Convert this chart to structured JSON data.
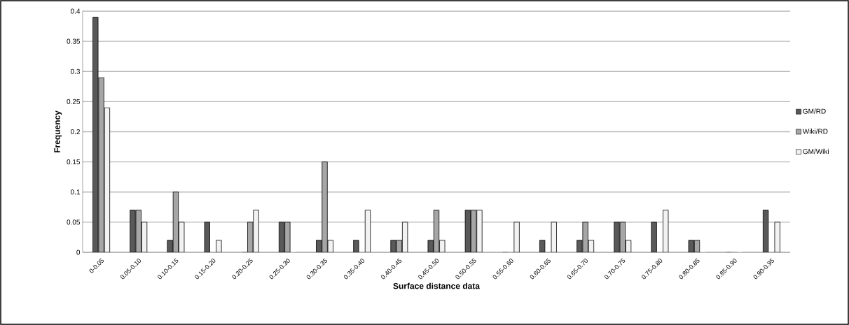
{
  "chart_data": {
    "type": "bar",
    "xlabel": "Surface distance data",
    "ylabel": "Frequency",
    "categories": [
      "0-0.05",
      "0.05-0.10",
      "0.10-0.15",
      "0.15-0.20",
      "0.20-0.25",
      "0.25-0.30",
      "0.30-0.35",
      "0.35-0.40",
      "0.40-0.45",
      "0.45-0.50",
      "0.50-0.55",
      "0.55-0.60",
      "0.60-0.65",
      "0.65-0.70",
      "0.70-0.75",
      "0.75-0.80",
      "0.80-0.85",
      "0.85-0.90",
      "0.90-0.95"
    ],
    "series": [
      {
        "name": "GM/RD",
        "color": "#595959",
        "values": [
          0.39,
          0.07,
          0.02,
          0.05,
          0,
          0.05,
          0.02,
          0.02,
          0.02,
          0.02,
          0.07,
          0,
          0.02,
          0.02,
          0.05,
          0.05,
          0.02,
          0,
          0.07
        ]
      },
      {
        "name": "Wiki/RD",
        "color": "#a6a6a6",
        "values": [
          0.29,
          0.07,
          0.1,
          0,
          0.05,
          0.05,
          0.15,
          0,
          0.02,
          0.07,
          0.07,
          0,
          0,
          0.05,
          0.05,
          0,
          0.02,
          0,
          0
        ]
      },
      {
        "name": "GM/Wiki",
        "color": "#f2f2f2",
        "values": [
          0.24,
          0.05,
          0.05,
          0.02,
          0.07,
          0,
          0.02,
          0.07,
          0.05,
          0.02,
          0.07,
          0.05,
          0.05,
          0.02,
          0.02,
          0.07,
          0,
          0,
          0.05
        ]
      }
    ],
    "ylim": [
      0,
      0.4
    ],
    "yticks": [
      0,
      0.05,
      0.1,
      0.15,
      0.2,
      0.25,
      0.3,
      0.35,
      0.4
    ],
    "grid": "y",
    "legend": "right"
  }
}
